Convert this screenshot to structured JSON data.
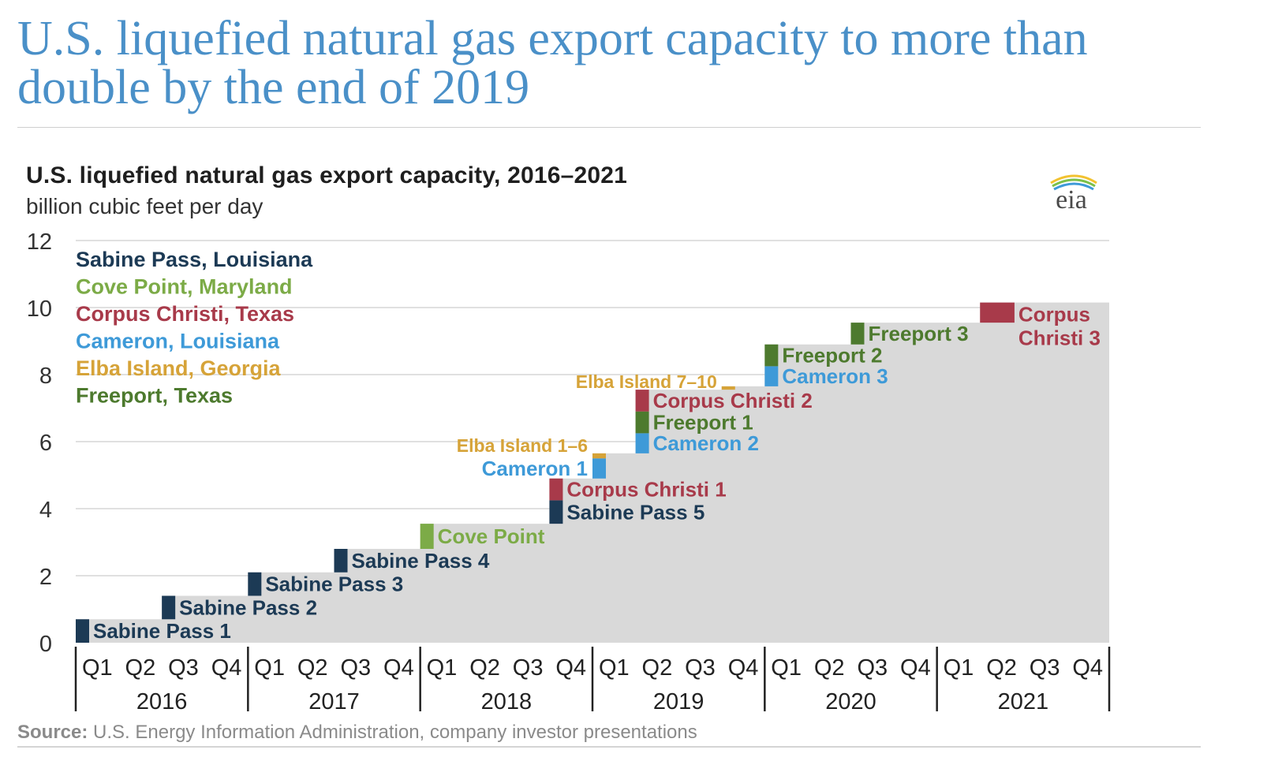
{
  "headline": "U.S. liquefied natural gas export capacity to more than double by the end of 2019",
  "source_label": "Source:",
  "source_text": "U.S. Energy Information Administration, company investor presentations",
  "logo_text": "eia",
  "colors": {
    "headline": "#4a90c8",
    "area": "#d9d9d9",
    "Sabine Pass": "#1c3a55",
    "Cove Point": "#7cab47",
    "Corpus Christi": "#a83a4a",
    "Cameron": "#3e9ad8",
    "Elba Island": "#d6a338",
    "Freeport": "#4d7a2e"
  },
  "chart_data": {
    "type": "area",
    "title": "U.S. liquefied natural gas export capacity, 2016–2021",
    "subtitle": "billion cubic feet per day",
    "ylim": [
      0,
      12
    ],
    "yticks": [
      0,
      2,
      4,
      6,
      8,
      10,
      12
    ],
    "grid": true,
    "years": [
      "2016",
      "2017",
      "2018",
      "2019",
      "2020",
      "2021"
    ],
    "quarters": [
      "Q1",
      "Q2",
      "Q3",
      "Q4"
    ],
    "legend": [
      {
        "label": "Sabine Pass, Louisiana",
        "key": "Sabine Pass"
      },
      {
        "label": "Cove Point, Maryland",
        "key": "Cove Point"
      },
      {
        "label": "Corpus Christi, Texas",
        "key": "Corpus Christi"
      },
      {
        "label": "Cameron, Louisiana",
        "key": "Cameron"
      },
      {
        "label": "Elba Island, Georgia",
        "key": "Elba Island"
      },
      {
        "label": "Freeport, Texas",
        "key": "Freeport"
      }
    ],
    "additions": [
      {
        "quarter": 0,
        "facility": "Sabine Pass",
        "label": "Sabine Pass 1",
        "value": 0.7
      },
      {
        "quarter": 2,
        "facility": "Sabine Pass",
        "label": "Sabine Pass 2",
        "value": 0.7
      },
      {
        "quarter": 4,
        "facility": "Sabine Pass",
        "label": "Sabine Pass 3",
        "value": 0.7
      },
      {
        "quarter": 6,
        "facility": "Sabine Pass",
        "label": "Sabine Pass 4",
        "value": 0.7
      },
      {
        "quarter": 8,
        "facility": "Cove Point",
        "label": "Cove Point",
        "value": 0.75
      },
      {
        "quarter": 11,
        "facility": "Sabine Pass",
        "label": "Sabine Pass 5",
        "value": 0.7
      },
      {
        "quarter": 11,
        "facility": "Corpus Christi",
        "label": "Corpus Christi 1",
        "value": 0.65
      },
      {
        "quarter": 12,
        "facility": "Cameron",
        "label": "Cameron 1",
        "value": 0.6
      },
      {
        "quarter": 12,
        "facility": "Elba Island",
        "label": "Elba Island 1–6",
        "value": 0.15
      },
      {
        "quarter": 13,
        "facility": "Cameron",
        "label": "Cameron 2",
        "value": 0.6
      },
      {
        "quarter": 13,
        "facility": "Freeport",
        "label": "Freeport 1",
        "value": 0.65
      },
      {
        "quarter": 13,
        "facility": "Corpus Christi",
        "label": "Corpus Christi 2",
        "value": 0.65
      },
      {
        "quarter": 15,
        "facility": "Elba Island",
        "label": "Elba Island 7–10",
        "value": 0.1
      },
      {
        "quarter": 16,
        "facility": "Cameron",
        "label": "Cameron 3",
        "value": 0.6
      },
      {
        "quarter": 16,
        "facility": "Freeport",
        "label": "Freeport 2",
        "value": 0.65
      },
      {
        "quarter": 18,
        "facility": "Freeport",
        "label": "Freeport 3",
        "value": 0.65
      },
      {
        "quarter": 21,
        "facility": "Corpus Christi",
        "label": "Corpus Christi 3",
        "value": 0.6
      }
    ]
  }
}
